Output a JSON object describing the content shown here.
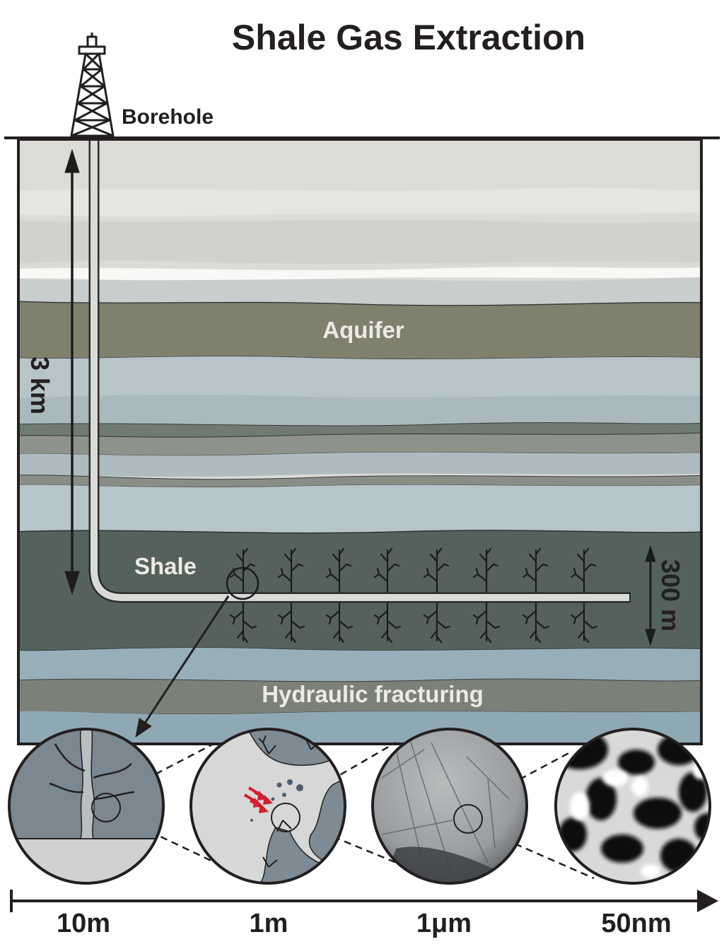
{
  "title": "Shale Gas Extraction",
  "labels": {
    "borehole": "Borehole",
    "depth": "3 km",
    "aquifer": "Aquifer",
    "shale": "Shale",
    "fracture_zone": "300 m",
    "hydraulic_fracturing": "Hydraulic fracturing"
  },
  "scale_bar": {
    "ticks": [
      "10m",
      "1m",
      "1μm",
      "50nm"
    ]
  },
  "colors": {
    "outline": "#231f20",
    "aquifer": "#80806f",
    "shale": "#55615d",
    "pipe": "#d9d9d6",
    "fracture_arrows": "#d01f2e"
  }
}
